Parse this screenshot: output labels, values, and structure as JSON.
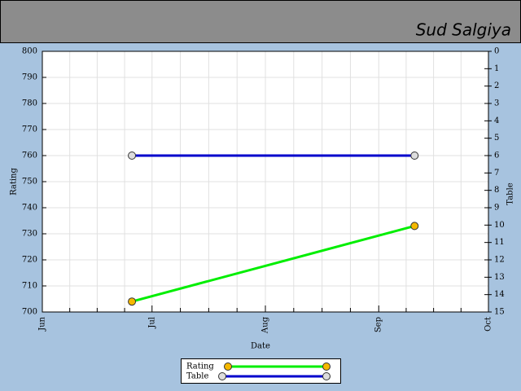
{
  "header": {
    "name": "Sud Salgiya"
  },
  "chart_data": {
    "type": "line",
    "x_label": "Date",
    "y_label": "Rating",
    "y2_label": "Table",
    "xlim": [
      0,
      122
    ],
    "xticks": [
      {
        "value": 0,
        "label": "Jun"
      },
      {
        "value": 30,
        "label": "Jul"
      },
      {
        "value": 61,
        "label": "Aug"
      },
      {
        "value": 92,
        "label": "Sep"
      },
      {
        "value": 122,
        "label": "Oct"
      }
    ],
    "ylim": [
      700,
      800
    ],
    "yticks": [
      700,
      710,
      720,
      730,
      740,
      750,
      760,
      770,
      780,
      790,
      800
    ],
    "y2lim": [
      15,
      0
    ],
    "y2ticks": [
      0,
      1,
      2,
      3,
      4,
      5,
      6,
      7,
      8,
      9,
      10,
      11,
      12,
      13,
      14,
      15
    ],
    "grid": true,
    "series": [
      {
        "name": "Rating",
        "color": "#00ee00",
        "marker_color": "#f5b800",
        "x": [
          24.5,
          101.8
        ],
        "values": [
          704,
          733
        ]
      },
      {
        "name": "Table",
        "color": "#0000cc",
        "marker_color": "#dddddd",
        "axis": "y2",
        "x": [
          24.5,
          101.8
        ],
        "values": [
          6,
          6
        ]
      }
    ]
  }
}
